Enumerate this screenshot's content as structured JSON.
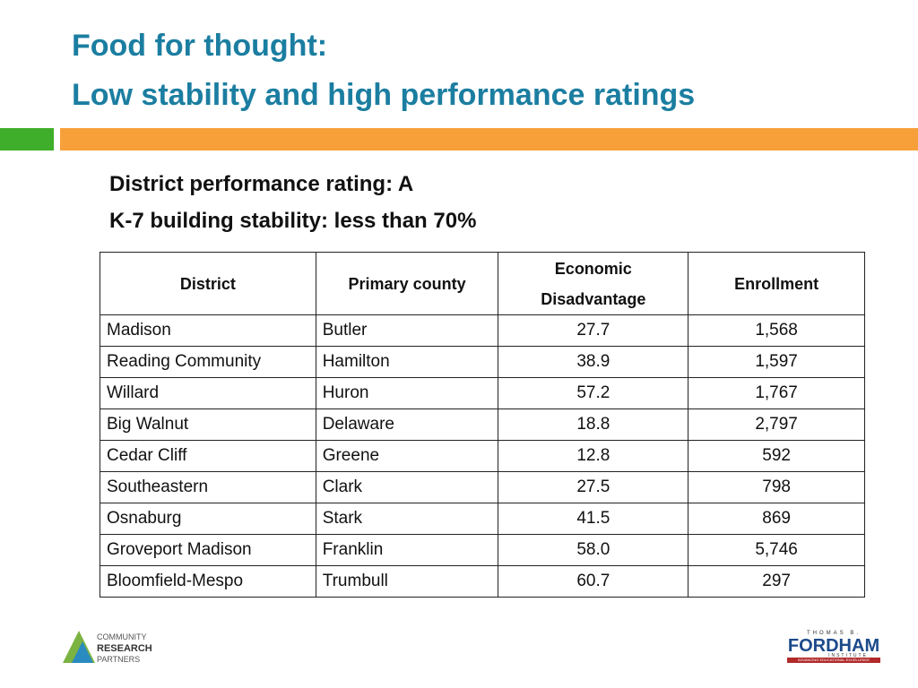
{
  "header": {
    "title": [
      "Food for thought:",
      "Low stability and high performance ratings"
    ]
  },
  "subtitle": [
    "District performance rating: A",
    "K-7 building stability: less than 70%"
  ],
  "table": {
    "columns": [
      "District",
      "Primary county",
      "Economic Disadvantage",
      "Enrollment"
    ],
    "rows": [
      [
        "Madison",
        "Butler",
        "27.7",
        "1,568"
      ],
      [
        "Reading Community",
        "Hamilton",
        "38.9",
        "1,597"
      ],
      [
        "Willard",
        "Huron",
        "57.2",
        "1,767"
      ],
      [
        "Big Walnut",
        "Delaware",
        "18.8",
        "2,797"
      ],
      [
        "Cedar Cliff",
        "Greene",
        "12.8",
        "592"
      ],
      [
        "Southeastern",
        "Clark",
        "27.5",
        "798"
      ],
      [
        "Osnaburg",
        "Stark",
        "41.5",
        "869"
      ],
      [
        "Groveport Madison",
        "Franklin",
        "58.0",
        "5,746"
      ],
      [
        "Bloomfield-Mespo",
        "Trumbull",
        "60.7",
        "297"
      ]
    ]
  },
  "logos": {
    "left": [
      "COMMUNITY",
      "RESEARCH",
      "PARTNERS"
    ],
    "right": {
      "top": "THOMAS B.",
      "name": "FORDHAM",
      "sub": "INSTITUTE",
      "tagline": "ADVANCING EDUCATIONAL EXCELLENCE"
    }
  }
}
